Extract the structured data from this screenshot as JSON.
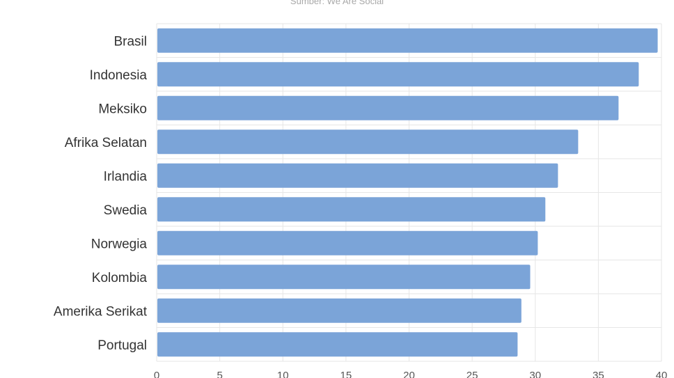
{
  "chart": {
    "subtitle": "Sumber: We Are Social"
  },
  "chart_data": {
    "type": "bar",
    "orientation": "horizontal",
    "subtitle": "Sumber: We Are Social",
    "categories": [
      "Brasil",
      "Indonesia",
      "Meksiko",
      "Afrika Selatan",
      "Irlandia",
      "Swedia",
      "Norwegia",
      "Kolombia",
      "Amerika Serikat",
      "Portugal"
    ],
    "values": [
      39.7,
      38.2,
      36.6,
      33.4,
      31.8,
      30.8,
      30.2,
      29.6,
      28.9,
      28.6
    ],
    "xlim": [
      0,
      40
    ],
    "xticks": [
      "0",
      "5",
      "10",
      "15",
      "20",
      "25",
      "30",
      "35",
      "40"
    ],
    "grid": true,
    "bar_color": "#7ba4d8"
  }
}
